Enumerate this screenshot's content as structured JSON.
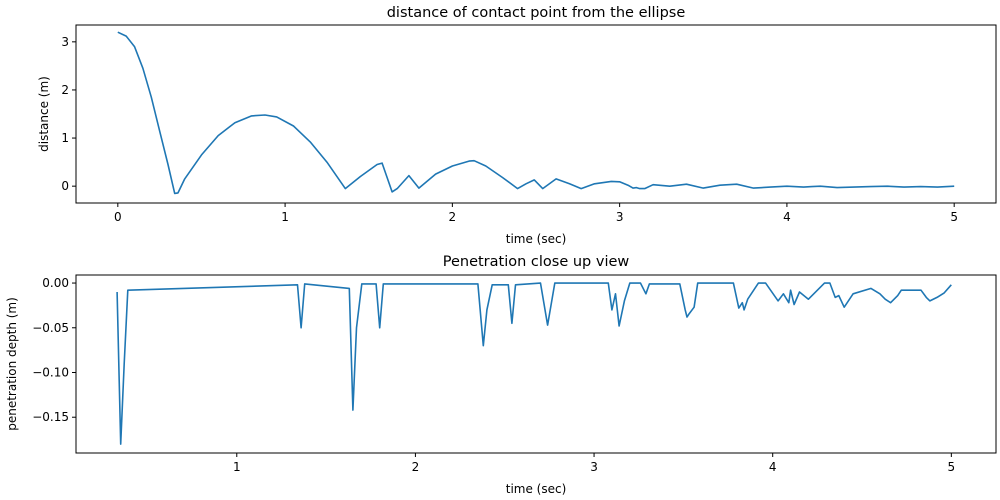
{
  "chart_data": [
    {
      "type": "line",
      "title": "distance of contact point from the ellipse",
      "xlabel": "time (sec)",
      "ylabel": "distance (m)",
      "xlim": [
        -0.25,
        5.25
      ],
      "ylim": [
        -0.35,
        3.35
      ],
      "xticks": [
        "0",
        "1",
        "2",
        "3",
        "4",
        "5"
      ],
      "yticks": [
        "0",
        "1",
        "2",
        "3"
      ],
      "grid": false,
      "color": "#1f77b4",
      "series": [
        {
          "name": "distance",
          "x": [
            0.0,
            0.05,
            0.1,
            0.15,
            0.2,
            0.25,
            0.3,
            0.34,
            0.36,
            0.4,
            0.5,
            0.6,
            0.7,
            0.8,
            0.88,
            0.95,
            1.05,
            1.15,
            1.25,
            1.36,
            1.45,
            1.55,
            1.58,
            1.64,
            1.67,
            1.74,
            1.8,
            1.9,
            2.0,
            2.1,
            2.13,
            2.2,
            2.3,
            2.39,
            2.44,
            2.49,
            2.54,
            2.62,
            2.7,
            2.77,
            2.85,
            2.95,
            3.0,
            3.05,
            3.08,
            3.1,
            3.12,
            3.15,
            3.2,
            3.3,
            3.4,
            3.5,
            3.6,
            3.7,
            3.8,
            3.9,
            4.0,
            4.1,
            4.15,
            4.2,
            4.3,
            4.4,
            4.5,
            4.6,
            4.7,
            4.8,
            4.9,
            5.0
          ],
          "y": [
            3.2,
            3.12,
            2.9,
            2.45,
            1.85,
            1.15,
            0.45,
            -0.15,
            -0.14,
            0.15,
            0.65,
            1.05,
            1.32,
            1.46,
            1.48,
            1.44,
            1.25,
            0.92,
            0.5,
            -0.05,
            0.2,
            0.45,
            0.48,
            -0.12,
            -0.05,
            0.22,
            -0.04,
            0.25,
            0.42,
            0.52,
            0.53,
            0.42,
            0.18,
            -0.05,
            0.05,
            0.13,
            -0.05,
            0.15,
            0.05,
            -0.05,
            0.05,
            0.1,
            0.09,
            0.02,
            -0.04,
            -0.03,
            -0.05,
            -0.05,
            0.03,
            0.0,
            0.04,
            -0.04,
            0.02,
            0.04,
            -0.04,
            -0.02,
            0.0,
            -0.02,
            -0.01,
            0.0,
            -0.03,
            -0.02,
            -0.01,
            0.0,
            -0.02,
            -0.01,
            -0.02,
            0.0
          ]
        }
      ]
    },
    {
      "type": "line",
      "title": "Penetration close up view",
      "xlabel": "time (sec)",
      "ylabel": "penetration depth (m)",
      "xlim": [
        0.1,
        5.25
      ],
      "ylim": [
        -0.19,
        0.009
      ],
      "xticks": [
        "1",
        "2",
        "3",
        "4",
        "5"
      ],
      "yticks": [
        "0.00",
        "−0.05",
        "−0.10",
        "−0.15"
      ],
      "grid": false,
      "color": "#1f77b4",
      "series": [
        {
          "name": "penetration depth",
          "x": [
            0.33,
            0.35,
            0.37,
            0.39,
            1.34,
            1.36,
            1.38,
            1.63,
            1.65,
            1.67,
            1.7,
            1.78,
            1.8,
            1.82,
            2.35,
            2.38,
            2.4,
            2.43,
            2.52,
            2.54,
            2.56,
            2.7,
            2.74,
            2.78,
            3.08,
            3.1,
            3.12,
            3.14,
            3.17,
            3.2,
            3.26,
            3.29,
            3.31,
            3.33,
            3.48,
            3.51,
            3.52,
            3.53,
            3.56,
            3.58,
            3.78,
            3.81,
            3.83,
            3.84,
            3.86,
            3.92,
            3.96,
            4.03,
            4.06,
            4.09,
            4.1,
            4.12,
            4.15,
            4.2,
            4.29,
            4.32,
            4.35,
            4.37,
            4.4,
            4.45,
            4.55,
            4.6,
            4.63,
            4.66,
            4.7,
            4.72,
            4.75,
            4.83,
            4.86,
            4.88,
            4.92,
            4.96,
            5.0
          ],
          "y": [
            -0.01,
            -0.18,
            -0.09,
            -0.008,
            -0.002,
            -0.05,
            -0.001,
            -0.006,
            -0.142,
            -0.05,
            -0.001,
            -0.001,
            -0.05,
            -0.001,
            -0.001,
            -0.07,
            -0.03,
            -0.002,
            -0.002,
            -0.045,
            -0.002,
            -0.0,
            -0.047,
            -0.0,
            -0.0,
            -0.03,
            -0.012,
            -0.048,
            -0.02,
            -0.0,
            -0.0,
            -0.012,
            -0.001,
            -0.001,
            -0.001,
            -0.03,
            -0.038,
            -0.035,
            -0.027,
            -0.0,
            -0.0,
            -0.028,
            -0.022,
            -0.03,
            -0.018,
            -0.0,
            -0.0,
            -0.02,
            -0.012,
            -0.022,
            -0.008,
            -0.024,
            -0.01,
            -0.018,
            -0.0,
            -0.0,
            -0.016,
            -0.014,
            -0.027,
            -0.012,
            -0.006,
            -0.012,
            -0.018,
            -0.022,
            -0.014,
            -0.008,
            -0.008,
            -0.008,
            -0.016,
            -0.02,
            -0.016,
            -0.011,
            -0.002
          ]
        }
      ]
    }
  ]
}
